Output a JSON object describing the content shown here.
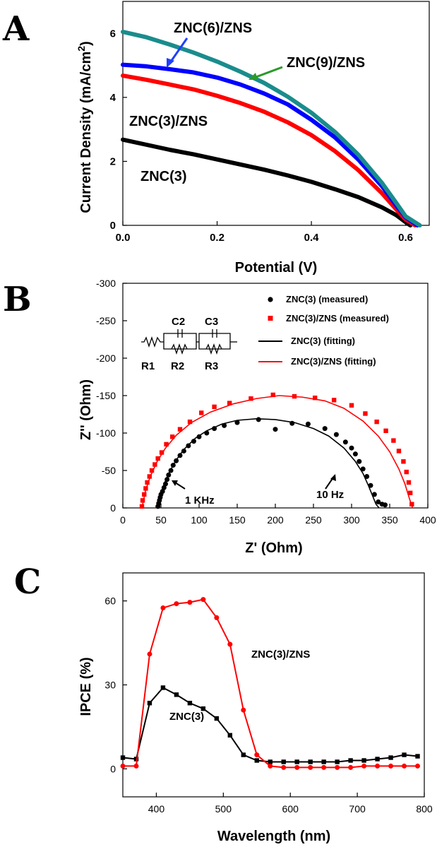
{
  "chart_data": [
    {
      "type": "line",
      "panel": "A",
      "xlabel": "Potential (V)",
      "ylabel": "Current Density (mA/cm",
      "ylabel_sup": "2",
      "ylabel_close": ")",
      "xlim": [
        0.0,
        0.65
      ],
      "ylim": [
        0,
        7
      ],
      "xticks": [
        0.0,
        0.2,
        0.4,
        0.6
      ],
      "xtick_labels": [
        "0.0",
        "0.2",
        "0.4",
        "0.6"
      ],
      "yticks": [
        0,
        2,
        4,
        6
      ],
      "ytick_labels": [
        "0",
        "2",
        "4",
        "6"
      ],
      "series": [
        {
          "name": "ZNC(3)",
          "color": "#000000",
          "label": "ZNC(3)",
          "x": [
            0.0,
            0.05,
            0.1,
            0.15,
            0.2,
            0.25,
            0.3,
            0.35,
            0.4,
            0.45,
            0.5,
            0.55,
            0.58,
            0.6,
            0.61
          ],
          "y": [
            2.68,
            2.52,
            2.36,
            2.22,
            2.06,
            1.9,
            1.74,
            1.56,
            1.36,
            1.13,
            0.88,
            0.56,
            0.32,
            0.1,
            0.0
          ]
        },
        {
          "name": "ZNC(3)/ZNS",
          "color": "#ff0000",
          "label": "ZNC(3)/ZNS",
          "x": [
            0.0,
            0.05,
            0.1,
            0.15,
            0.2,
            0.25,
            0.3,
            0.35,
            0.4,
            0.45,
            0.5,
            0.55,
            0.58,
            0.6,
            0.62
          ],
          "y": [
            4.68,
            4.55,
            4.4,
            4.25,
            4.05,
            3.82,
            3.55,
            3.22,
            2.82,
            2.32,
            1.72,
            1.0,
            0.5,
            0.18,
            0.0
          ]
        },
        {
          "name": "ZNC(6)/ZNS",
          "color": "#0000ff",
          "label": "ZNC(6)/ZNS",
          "x": [
            0.0,
            0.05,
            0.1,
            0.15,
            0.2,
            0.25,
            0.3,
            0.35,
            0.4,
            0.45,
            0.5,
            0.55,
            0.58,
            0.6,
            0.625
          ],
          "y": [
            5.02,
            4.97,
            4.88,
            4.78,
            4.62,
            4.4,
            4.12,
            3.78,
            3.3,
            2.75,
            2.05,
            1.22,
            0.62,
            0.25,
            0.0
          ]
        },
        {
          "name": "ZNC(9)/ZNS",
          "color": "#1a8c8c",
          "label": "ZNC(9)/ZNS",
          "x": [
            0.0,
            0.05,
            0.1,
            0.15,
            0.2,
            0.25,
            0.3,
            0.35,
            0.4,
            0.45,
            0.5,
            0.55,
            0.58,
            0.6,
            0.63
          ],
          "y": [
            6.05,
            5.88,
            5.65,
            5.4,
            5.12,
            4.8,
            4.45,
            4.02,
            3.52,
            2.92,
            2.2,
            1.32,
            0.7,
            0.28,
            0.0
          ]
        }
      ]
    },
    {
      "type": "scatter",
      "panel": "B",
      "xlabel": "Z' (Ohm)",
      "ylabel": "Z'' (Ohm)",
      "xlim": [
        0,
        400
      ],
      "ylim": [
        0,
        -300
      ],
      "xticks": [
        0,
        50,
        100,
        150,
        200,
        250,
        300,
        350,
        400
      ],
      "xtick_labels": [
        "0",
        "50",
        "100",
        "150",
        "200",
        "250",
        "300",
        "350",
        "400"
      ],
      "yticks": [
        0,
        -50,
        -100,
        -150,
        -200,
        -250,
        -300
      ],
      "ytick_labels": [
        "0",
        "-50",
        "-100",
        "-150",
        "-200",
        "-250",
        "-300"
      ],
      "legend": [
        {
          "label": "ZNC(3) (measured)",
          "marker": "circle",
          "color": "#000000"
        },
        {
          "label": "ZNC(3)/ZNS (measured)",
          "marker": "square",
          "color": "#ff0000"
        },
        {
          "label": "ZNC(3) (fitting)",
          "marker": "line",
          "color": "#000000"
        },
        {
          "label": "ZNC(3)/ZNS (fitting)",
          "marker": "line",
          "color": "#ff0000"
        }
      ],
      "annotations": [
        "1 KHz",
        "10 Hz"
      ],
      "circuit_labels": [
        "C2",
        "C3",
        "R1",
        "R2",
        "R3"
      ],
      "series": [
        {
          "name": "ZNC(3) (measured)",
          "color": "#000000",
          "marker": "circle",
          "x": [
            46,
            47,
            48,
            49,
            50,
            52,
            54,
            56,
            58,
            60,
            63,
            66,
            70,
            75,
            80,
            86,
            93,
            100,
            110,
            120,
            133,
            150,
            178,
            200,
            222,
            243,
            265,
            280,
            292,
            300,
            305,
            310,
            315,
            320,
            325,
            330,
            335,
            340,
            344
          ],
          "y": [
            -2,
            -6,
            -10,
            -14,
            -18,
            -22,
            -27,
            -32,
            -38,
            -44,
            -50,
            -57,
            -63,
            -70,
            -76,
            -83,
            -89,
            -95,
            -100,
            -106,
            -110,
            -114,
            -118,
            -105,
            -113,
            -112,
            -106,
            -98,
            -88,
            -80,
            -72,
            -62,
            -52,
            -42,
            -30,
            -18,
            -8,
            -5,
            -4
          ]
        },
        {
          "name": "ZNC(3)/ZNS (measured)",
          "color": "#ff0000",
          "marker": "square",
          "x": [
            25,
            26,
            28,
            30,
            32,
            35,
            38,
            42,
            46,
            51,
            57,
            65,
            75,
            88,
            103,
            120,
            140,
            168,
            197,
            225,
            252,
            277,
            300,
            318,
            333,
            345,
            355,
            362,
            368,
            372,
            375,
            377,
            379
          ],
          "y": [
            -2,
            -10,
            -18,
            -26,
            -34,
            -42,
            -50,
            -58,
            -66,
            -74,
            -85,
            -95,
            -105,
            -115,
            -127,
            -135,
            -140,
            -146,
            -151,
            -149,
            -147,
            -144,
            -137,
            -126,
            -115,
            -103,
            -90,
            -76,
            -62,
            -48,
            -34,
            -20,
            -5
          ]
        },
        {
          "name": "ZNC(3) (fitting)",
          "color": "#000000",
          "marker": "line",
          "x": [
            45,
            50,
            55,
            60,
            70,
            80,
            95,
            110,
            130,
            150,
            175,
            200,
            225,
            250,
            270,
            290,
            305,
            315,
            322,
            328,
            332,
            336
          ],
          "y": [
            0,
            -20,
            -34,
            -46,
            -64,
            -78,
            -93,
            -103,
            -112,
            -117,
            -119,
            -118,
            -114,
            -106,
            -96,
            -80,
            -62,
            -46,
            -30,
            -15,
            -5,
            0
          ]
        },
        {
          "name": "ZNC(3)/ZNS (fitting)",
          "color": "#ff0000",
          "marker": "line",
          "x": [
            25,
            30,
            36,
            45,
            56,
            70,
            90,
            115,
            145,
            175,
            205,
            235,
            265,
            290,
            315,
            335,
            350,
            362,
            370,
            376,
            380
          ],
          "y": [
            0,
            -24,
            -42,
            -62,
            -80,
            -97,
            -114,
            -128,
            -139,
            -146,
            -150,
            -148,
            -143,
            -133,
            -116,
            -96,
            -75,
            -52,
            -32,
            -12,
            0
          ]
        }
      ]
    },
    {
      "type": "line",
      "panel": "C",
      "xlabel": "Wavelength (nm)",
      "ylabel": "IPCE (%)",
      "xlim": [
        350,
        800
      ],
      "ylim": [
        -10,
        70
      ],
      "xticks": [
        400,
        500,
        600,
        700,
        800
      ],
      "xtick_labels": [
        "400",
        "500",
        "600",
        "700",
        "800"
      ],
      "yticks": [
        0,
        30,
        60
      ],
      "ytick_labels": [
        "0",
        "30",
        "60"
      ],
      "series": [
        {
          "name": "ZNC(3)",
          "color": "#000000",
          "marker": "square",
          "label": "ZNC(3)",
          "x": [
            350,
            370,
            390,
            410,
            430,
            450,
            470,
            490,
            510,
            530,
            550,
            570,
            590,
            610,
            630,
            650,
            670,
            690,
            710,
            730,
            750,
            770,
            790
          ],
          "y": [
            4.0,
            3.5,
            23.5,
            29.0,
            26.5,
            23.5,
            21.5,
            18.0,
            12.0,
            5.0,
            3.0,
            2.5,
            2.5,
            2.5,
            2.5,
            2.5,
            2.5,
            3.0,
            3.0,
            3.5,
            4.0,
            5.0,
            4.5
          ]
        },
        {
          "name": "ZNC(3)/ZNS",
          "color": "#ff0000",
          "marker": "circle",
          "label": "ZNC(3)/ZNS",
          "x": [
            350,
            370,
            390,
            410,
            430,
            450,
            470,
            490,
            510,
            530,
            550,
            570,
            590,
            610,
            630,
            650,
            670,
            690,
            710,
            730,
            750,
            770,
            790
          ],
          "y": [
            1.0,
            1.0,
            41.0,
            57.5,
            59.0,
            59.5,
            60.5,
            54.0,
            44.5,
            21.0,
            5.0,
            1.0,
            0.5,
            0.5,
            0.5,
            0.5,
            0.5,
            0.5,
            1.0,
            1.0,
            1.0,
            1.0,
            1.0
          ]
        }
      ]
    }
  ],
  "panels": {
    "a": "A",
    "b": "B",
    "c": "C"
  }
}
